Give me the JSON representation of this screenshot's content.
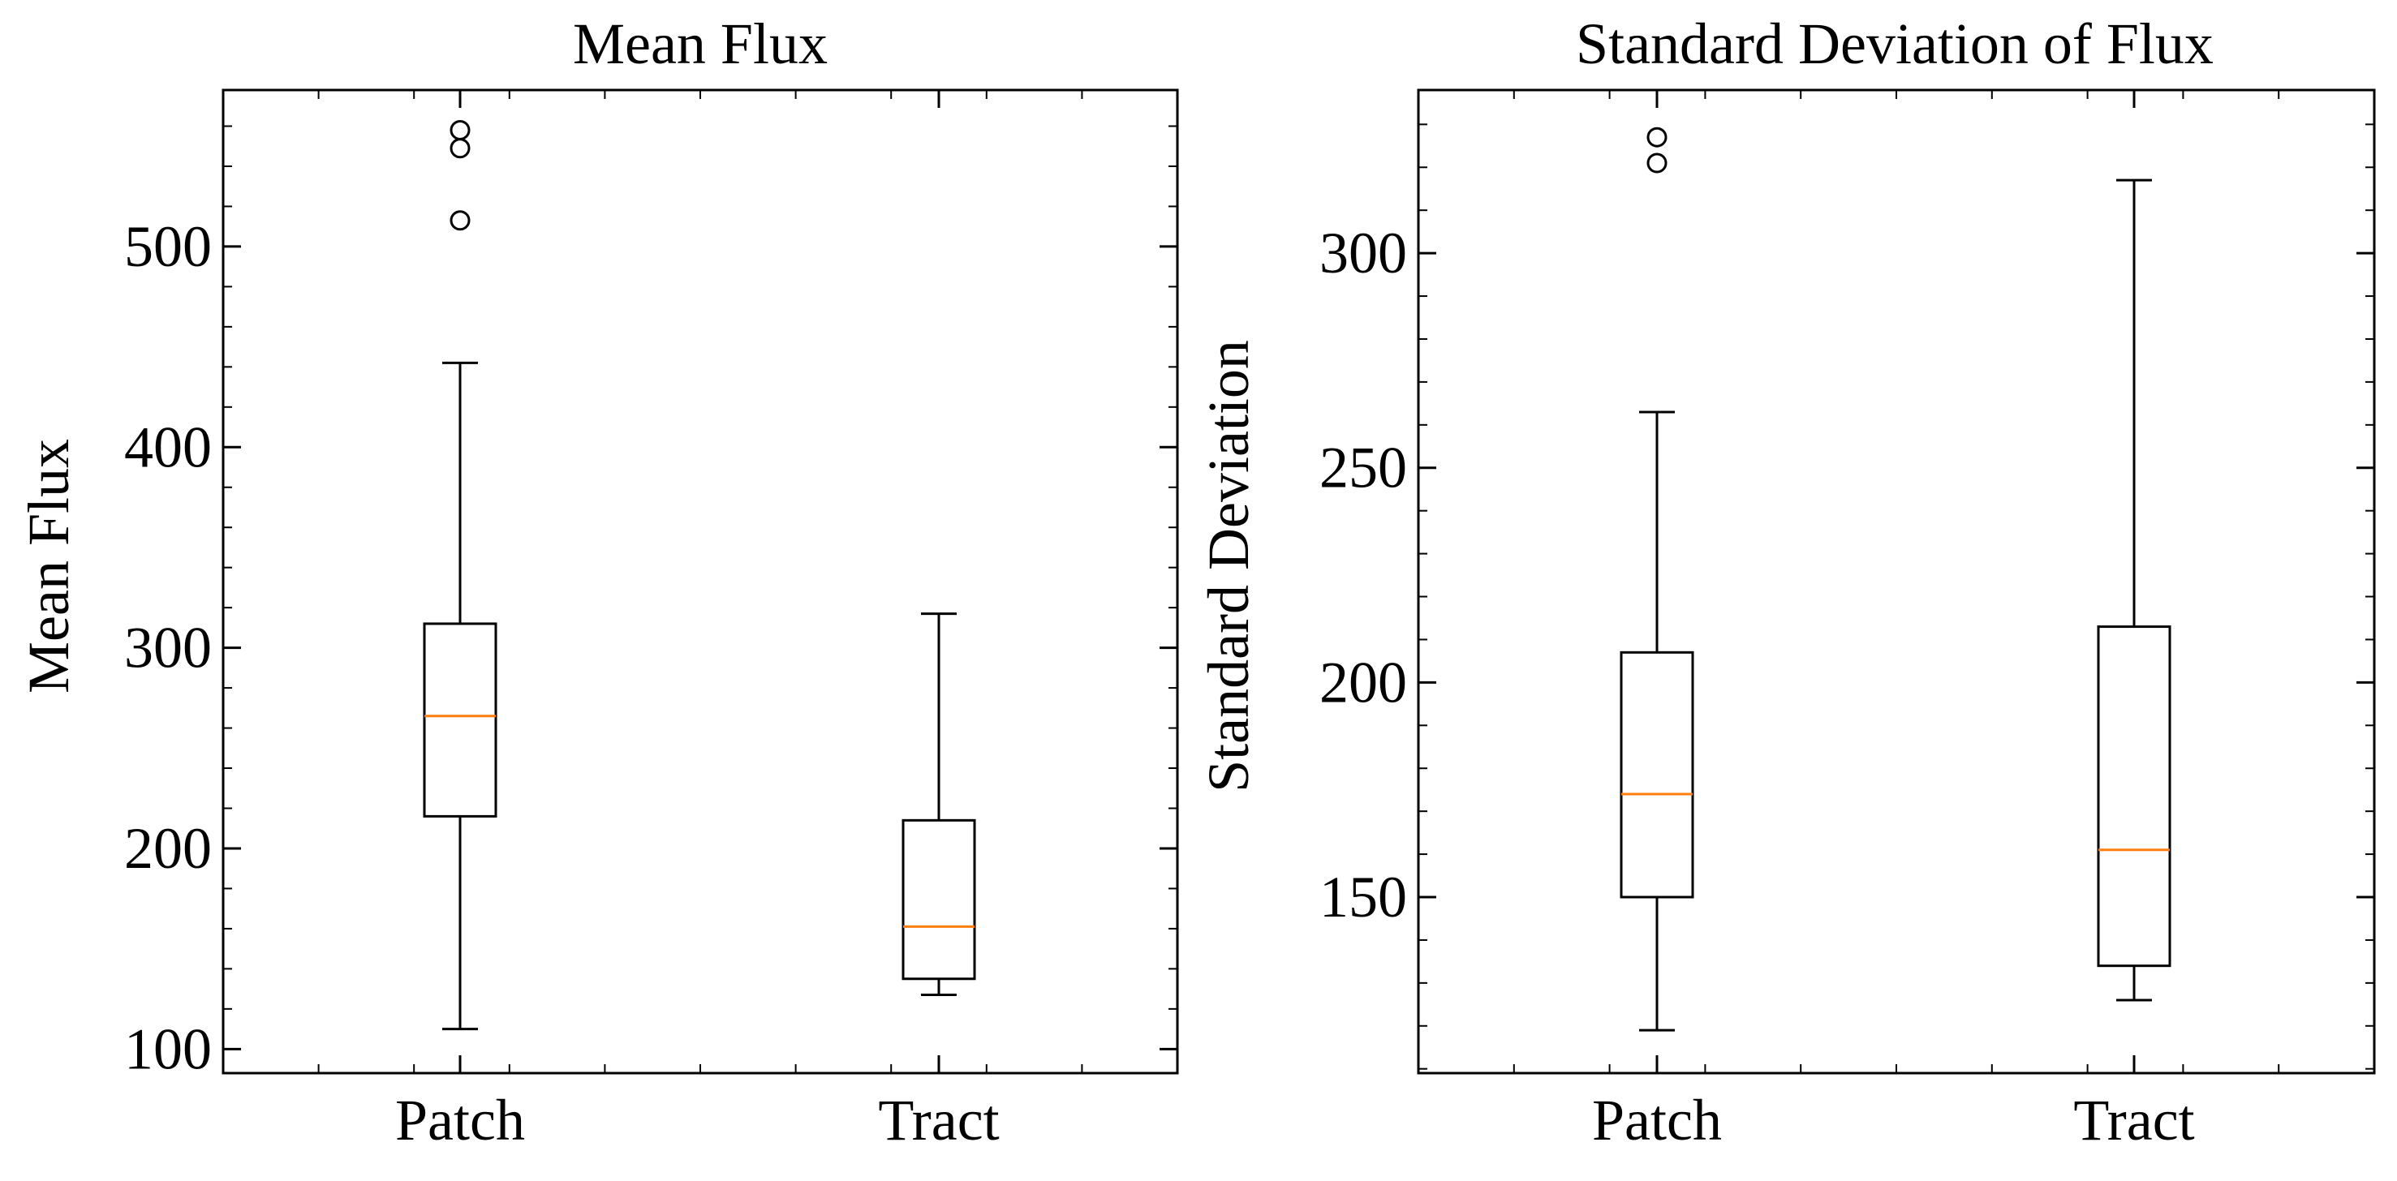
{
  "chart_data": [
    {
      "type": "box",
      "title": "Mean Flux",
      "xlabel": "",
      "ylabel": "Mean Flux",
      "ylim": [
        88,
        578
      ],
      "yticks": [
        100,
        200,
        300,
        400,
        500
      ],
      "yminor_step": 20,
      "categories": [
        "Patch",
        "Tract"
      ],
      "boxes": [
        {
          "category": "Patch",
          "whisker_low": 110,
          "q1": 216,
          "median": 266,
          "q3": 312,
          "whisker_high": 442,
          "outliers": [
            513,
            549,
            558
          ]
        },
        {
          "category": "Tract",
          "whisker_low": 127,
          "q1": 135,
          "median": 161,
          "q3": 214,
          "whisker_high": 317,
          "outliers": []
        }
      ],
      "colors": {
        "box": "#000000",
        "median": "#ff7f0e"
      },
      "grid": false
    },
    {
      "type": "box",
      "title": "Standard Deviation of Flux",
      "xlabel": "",
      "ylabel": "Standard Deviation",
      "ylim": [
        109,
        338
      ],
      "yticks": [
        150,
        200,
        250,
        300
      ],
      "yminor_step": 10,
      "categories": [
        "Patch",
        "Tract"
      ],
      "boxes": [
        {
          "category": "Patch",
          "whisker_low": 119,
          "q1": 150,
          "median": 174,
          "q3": 207,
          "whisker_high": 263,
          "outliers": [
            321,
            327
          ]
        },
        {
          "category": "Tract",
          "whisker_low": 126,
          "q1": 134,
          "median": 161,
          "q3": 213,
          "whisker_high": 317,
          "outliers": []
        }
      ],
      "colors": {
        "box": "#000000",
        "median": "#ff7f0e"
      },
      "grid": false
    }
  ]
}
